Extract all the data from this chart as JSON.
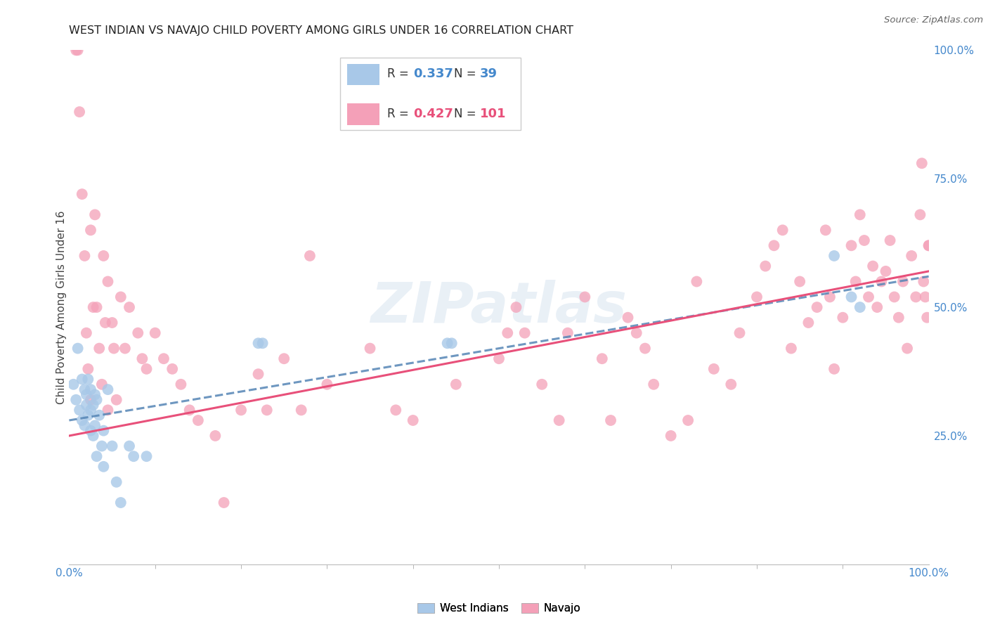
{
  "title": "WEST INDIAN VS NAVAJO CHILD POVERTY AMONG GIRLS UNDER 16 CORRELATION CHART",
  "source": "Source: ZipAtlas.com",
  "ylabel": "Child Poverty Among Girls Under 16",
  "xlim": [
    0,
    1
  ],
  "ylim": [
    0,
    1
  ],
  "xtick_labels": [
    "0.0%",
    "100.0%"
  ],
  "ytick_labels": [
    "25.0%",
    "50.0%",
    "75.0%",
    "100.0%"
  ],
  "ytick_positions": [
    0.25,
    0.5,
    0.75,
    1.0
  ],
  "west_indian_color": "#a8c8e8",
  "navajo_color": "#f4a0b8",
  "west_indian_line_color": "#5585b5",
  "navajo_line_color": "#e8507a",
  "background_color": "#ffffff",
  "grid_color": "#e0e0e0",
  "watermark_text": "ZIPatlas",
  "wi_R": 0.337,
  "wi_N": 39,
  "nav_R": 0.427,
  "nav_N": 101,
  "wi_label": "West Indians",
  "nav_label": "Navajo",
  "west_indian_x": [
    0.005,
    0.008,
    0.01,
    0.012,
    0.015,
    0.015,
    0.018,
    0.018,
    0.02,
    0.02,
    0.022,
    0.022,
    0.025,
    0.025,
    0.025,
    0.028,
    0.028,
    0.03,
    0.03,
    0.032,
    0.032,
    0.035,
    0.038,
    0.04,
    0.04,
    0.045,
    0.05,
    0.055,
    0.06,
    0.07,
    0.075,
    0.09,
    0.22,
    0.225,
    0.44,
    0.445,
    0.89,
    0.91,
    0.92
  ],
  "west_indian_y": [
    0.35,
    0.32,
    0.42,
    0.3,
    0.36,
    0.28,
    0.34,
    0.27,
    0.33,
    0.31,
    0.36,
    0.29,
    0.34,
    0.3,
    0.26,
    0.31,
    0.25,
    0.33,
    0.27,
    0.32,
    0.21,
    0.29,
    0.23,
    0.26,
    0.19,
    0.34,
    0.23,
    0.16,
    0.12,
    0.23,
    0.21,
    0.21,
    0.43,
    0.43,
    0.43,
    0.43,
    0.6,
    0.52,
    0.5
  ],
  "navajo_x": [
    0.008,
    0.01,
    0.012,
    0.015,
    0.018,
    0.02,
    0.022,
    0.025,
    0.025,
    0.028,
    0.03,
    0.032,
    0.035,
    0.038,
    0.04,
    0.042,
    0.045,
    0.045,
    0.05,
    0.052,
    0.055,
    0.06,
    0.065,
    0.07,
    0.08,
    0.085,
    0.09,
    0.1,
    0.11,
    0.12,
    0.13,
    0.14,
    0.15,
    0.17,
    0.18,
    0.2,
    0.22,
    0.23,
    0.25,
    0.27,
    0.28,
    0.3,
    0.35,
    0.38,
    0.4,
    0.45,
    0.5,
    0.51,
    0.52,
    0.53,
    0.55,
    0.57,
    0.58,
    0.6,
    0.62,
    0.63,
    0.65,
    0.66,
    0.67,
    0.68,
    0.7,
    0.72,
    0.73,
    0.75,
    0.77,
    0.78,
    0.8,
    0.81,
    0.82,
    0.83,
    0.84,
    0.85,
    0.86,
    0.87,
    0.88,
    0.885,
    0.89,
    0.9,
    0.91,
    0.915,
    0.92,
    0.925,
    0.93,
    0.935,
    0.94,
    0.945,
    0.95,
    0.955,
    0.96,
    0.965,
    0.97,
    0.975,
    0.98,
    0.985,
    0.99,
    0.992,
    0.994,
    0.996,
    0.998,
    1.0,
    1.0
  ],
  "navajo_y": [
    1.0,
    1.0,
    0.88,
    0.72,
    0.6,
    0.45,
    0.38,
    0.65,
    0.32,
    0.5,
    0.68,
    0.5,
    0.42,
    0.35,
    0.6,
    0.47,
    0.55,
    0.3,
    0.47,
    0.42,
    0.32,
    0.52,
    0.42,
    0.5,
    0.45,
    0.4,
    0.38,
    0.45,
    0.4,
    0.38,
    0.35,
    0.3,
    0.28,
    0.25,
    0.12,
    0.3,
    0.37,
    0.3,
    0.4,
    0.3,
    0.6,
    0.35,
    0.42,
    0.3,
    0.28,
    0.35,
    0.4,
    0.45,
    0.5,
    0.45,
    0.35,
    0.28,
    0.45,
    0.52,
    0.4,
    0.28,
    0.48,
    0.45,
    0.42,
    0.35,
    0.25,
    0.28,
    0.55,
    0.38,
    0.35,
    0.45,
    0.52,
    0.58,
    0.62,
    0.65,
    0.42,
    0.55,
    0.47,
    0.5,
    0.65,
    0.52,
    0.38,
    0.48,
    0.62,
    0.55,
    0.68,
    0.63,
    0.52,
    0.58,
    0.5,
    0.55,
    0.57,
    0.63,
    0.52,
    0.48,
    0.55,
    0.42,
    0.6,
    0.52,
    0.68,
    0.78,
    0.55,
    0.52,
    0.48,
    0.62,
    0.62
  ],
  "wi_intercept": 0.28,
  "wi_slope": 0.28,
  "nav_intercept": 0.25,
  "nav_slope": 0.32
}
